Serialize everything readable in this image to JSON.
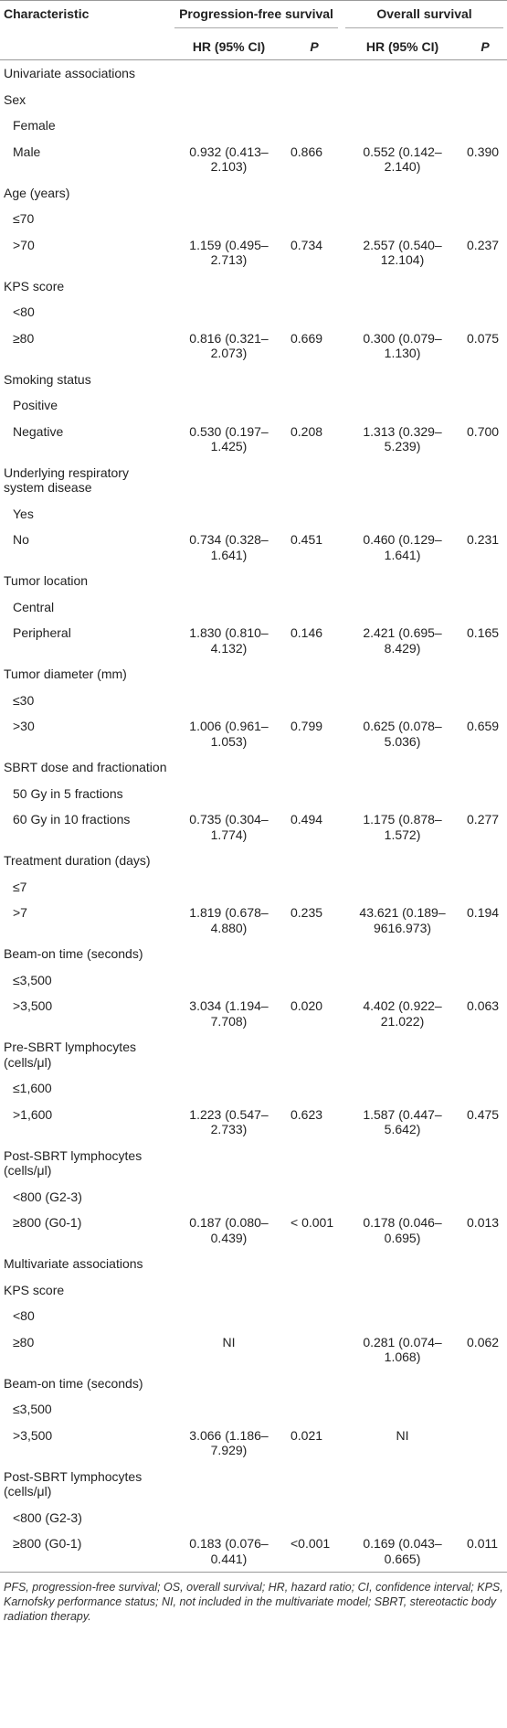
{
  "table": {
    "header": {
      "characteristic": "Characteristic",
      "groups": [
        "Progression-free survival",
        "Overall survival"
      ],
      "sub": [
        "HR (95% CI)",
        "P",
        "HR (95% CI)",
        "P"
      ]
    },
    "sections": [
      {
        "title": "Univariate associations",
        "groups": [
          {
            "label": "Sex",
            "rows": [
              {
                "label": "Female"
              },
              {
                "label": "Male",
                "pfs": [
                  "0.932 (0.413–2.103)",
                  "0.866"
                ],
                "os": [
                  "0.552 (0.142–2.140)",
                  "0.390"
                ]
              }
            ]
          },
          {
            "label": "Age (years)",
            "rows": [
              {
                "label": "≤70"
              },
              {
                "label": ">70",
                "pfs": [
                  "1.159 (0.495–2.713)",
                  "0.734"
                ],
                "os": [
                  "2.557 (0.540–12.104)",
                  "0.237"
                ]
              }
            ]
          },
          {
            "label": "KPS score",
            "rows": [
              {
                "label": "<80"
              },
              {
                "label": "≥80",
                "pfs": [
                  "0.816 (0.321–2.073)",
                  "0.669"
                ],
                "os": [
                  "0.300 (0.079–1.130)",
                  "0.075"
                ]
              }
            ]
          },
          {
            "label": "Smoking status",
            "rows": [
              {
                "label": "Positive"
              },
              {
                "label": "Negative",
                "pfs": [
                  "0.530 (0.197–1.425)",
                  "0.208"
                ],
                "os": [
                  "1.313 (0.329–5.239)",
                  "0.700"
                ]
              }
            ]
          },
          {
            "label": "Underlying respiratory system disease",
            "rows": [
              {
                "label": "Yes"
              },
              {
                "label": "No",
                "pfs": [
                  "0.734 (0.328–1.641)",
                  "0.451"
                ],
                "os": [
                  "0.460 (0.129–1.641)",
                  "0.231"
                ]
              }
            ]
          },
          {
            "label": "Tumor location",
            "rows": [
              {
                "label": "Central"
              },
              {
                "label": "Peripheral",
                "pfs": [
                  "1.830 (0.810–4.132)",
                  "0.146"
                ],
                "os": [
                  "2.421 (0.695–8.429)",
                  "0.165"
                ]
              }
            ]
          },
          {
            "label": "Tumor diameter (mm)",
            "rows": [
              {
                "label": "≤30"
              },
              {
                "label": ">30",
                "pfs": [
                  "1.006 (0.961–1.053)",
                  "0.799"
                ],
                "os": [
                  "0.625 (0.078–5.036)",
                  "0.659"
                ]
              }
            ]
          },
          {
            "label": "SBRT dose and fractionation",
            "rows": [
              {
                "label": "50 Gy in 5 fractions"
              },
              {
                "label": "60 Gy in 10 fractions",
                "pfs": [
                  "0.735 (0.304–1.774)",
                  "0.494"
                ],
                "os": [
                  "1.175 (0.878–1.572)",
                  "0.277"
                ]
              }
            ]
          },
          {
            "label": "Treatment duration (days)",
            "rows": [
              {
                "label": "≤7"
              },
              {
                "label": ">7",
                "pfs": [
                  "1.819 (0.678–4.880)",
                  "0.235"
                ],
                "os": [
                  "43.621 (0.189–9616.973)",
                  "0.194"
                ]
              }
            ]
          },
          {
            "label": "Beam-on time (seconds)",
            "rows": [
              {
                "label": "≤3,500"
              },
              {
                "label": ">3,500",
                "pfs": [
                  "3.034 (1.194–7.708)",
                  "0.020"
                ],
                "os": [
                  "4.402 (0.922–21.022)",
                  "0.063"
                ]
              }
            ]
          },
          {
            "label": "Pre-SBRT lymphocytes (cells/μl)",
            "rows": [
              {
                "label": "≤1,600"
              },
              {
                "label": ">1,600",
                "pfs": [
                  "1.223 (0.547–2.733)",
                  "0.623"
                ],
                "os": [
                  "1.587 (0.447–5.642)",
                  "0.475"
                ]
              }
            ]
          },
          {
            "label": "Post-SBRT lymphocytes (cells/μl)",
            "rows": [
              {
                "label": "<800 (G2-3)"
              },
              {
                "label": "≥800 (G0-1)",
                "pfs": [
                  "0.187 (0.080–0.439)",
                  "< 0.001"
                ],
                "os": [
                  "0.178 (0.046–0.695)",
                  "0.013"
                ]
              }
            ]
          }
        ]
      },
      {
        "title": "Multivariate associations",
        "groups": [
          {
            "label": "KPS score",
            "rows": [
              {
                "label": "<80"
              },
              {
                "label": "≥80",
                "pfs": [
                  "NI"
                ],
                "os": [
                  "0.281 (0.074–1.068)",
                  "0.062"
                ]
              }
            ]
          },
          {
            "label": "Beam-on time (seconds)",
            "rows": [
              {
                "label": "≤3,500"
              },
              {
                "label": ">3,500",
                "pfs": [
                  "3.066 (1.186–7.929)",
                  "0.021"
                ],
                "os": [
                  "NI"
                ]
              }
            ]
          },
          {
            "label": "Post-SBRT lymphocytes (cells/μl)",
            "rows": [
              {
                "label": "<800 (G2-3)"
              },
              {
                "label": "≥800 (G0-1)",
                "pfs": [
                  "0.183 (0.076–0.441)",
                  "<0.001"
                ],
                "os": [
                  "0.169 (0.043–0.665)",
                  "0.011"
                ]
              }
            ]
          }
        ]
      }
    ],
    "footnote": "PFS, progression-free survival; OS, overall survival; HR, hazard ratio; CI, confidence interval; KPS, Karnofsky performance status; NI, not included in the multivariate model; SBRT, stereotactic body radiation therapy."
  }
}
